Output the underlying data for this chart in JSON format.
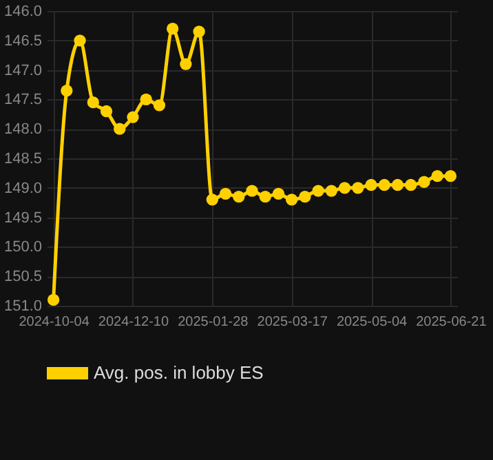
{
  "chart_data": {
    "type": "line",
    "categories": [
      "2024-10-04",
      null,
      null,
      null,
      null,
      null,
      "2024-12-10",
      null,
      null,
      null,
      null,
      null,
      "2025-01-28",
      null,
      null,
      null,
      null,
      null,
      "2025-03-17",
      null,
      null,
      null,
      null,
      null,
      "2025-05-04",
      null,
      null,
      null,
      null,
      null,
      "2025-06-21"
    ],
    "series": [
      {
        "name": "Avg. pos. in lobby ES",
        "color": "#ffd000",
        "values": [
          150.9,
          147.35,
          146.5,
          147.55,
          147.7,
          148.0,
          147.8,
          147.5,
          147.6,
          146.3,
          146.9,
          146.35,
          149.2,
          149.1,
          149.15,
          149.05,
          149.15,
          149.1,
          149.2,
          149.15,
          149.05,
          149.05,
          149.0,
          149.0,
          148.95,
          148.95,
          148.95,
          148.95,
          148.9,
          148.8,
          148.8
        ]
      }
    ],
    "ylim": [
      151.0,
      146.0
    ],
    "yticks": [
      {
        "value": 146,
        "label": "146.0"
      },
      146.5,
      {
        "value": 147,
        "label": "147.0"
      },
      147.5,
      {
        "value": 148,
        "label": "148.0"
      },
      148.5,
      {
        "value": 149,
        "label": "149.0"
      },
      149.5,
      {
        "value": 150,
        "label": "150.0"
      },
      150.5,
      {
        "value": 151,
        "label": "151.0"
      }
    ],
    "grid": true,
    "legend": "bottom",
    "marker": "circle",
    "line_style": "solid"
  }
}
